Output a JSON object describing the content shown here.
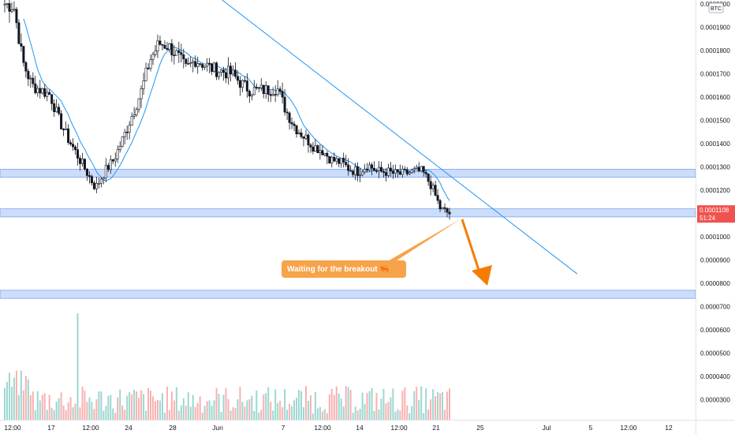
{
  "chart_data": {
    "type": "candlestick",
    "currency_badge": "BTC",
    "y_ticks": [
      "0.0002000",
      "0.0001900",
      "0.0001800",
      "0.0001700",
      "0.0001600",
      "0.0001500",
      "0.0001400",
      "0.0001300",
      "0.0001200",
      "0.0001000",
      "0.0000900",
      "0.0000800",
      "0.0000700",
      "0.0000600",
      "0.0000500",
      "0.0000400",
      "0.0000300"
    ],
    "y_tick_values": [
      0.0002,
      0.00019,
      0.00018,
      0.00017,
      0.00016,
      0.00015,
      0.00014,
      0.00013,
      0.00012,
      0.0001,
      9e-05,
      8e-05,
      7e-05,
      6e-05,
      5e-05,
      4e-05,
      3e-05
    ],
    "x_ticks": [
      "12:00",
      "17",
      "12:00",
      "24",
      "28",
      "Jun",
      "7",
      "12:00",
      "14",
      "12:00",
      "21",
      "25",
      "Jul",
      "5",
      "12:00",
      "12"
    ],
    "current_price": {
      "value": "0.0001108",
      "countdown": "51:24",
      "color": "#ef5350"
    },
    "annotation": {
      "text": "Waiting for the breakout 🦐",
      "color": "#f7a34a",
      "arrow_color": "#f57c00"
    },
    "support_zones": [
      [
        0.0001255,
        0.000129
      ],
      [
        0.0001085,
        0.000112
      ],
      [
        7.35e-05,
        7.7e-05
      ]
    ],
    "trendline": [
      [
        0.00021,
        8.4e-05
      ]
    ],
    "colors": {
      "up": "#26a69a",
      "down": "#ef5350",
      "candle": "#131722",
      "ma": "#2196f3",
      "zone": "#bbd1f8",
      "zone_border": "#5b8def"
    },
    "price_path": [
      0.0002,
      0.000199,
      0.000175,
      0.000165,
      0.000163,
      0.000161,
      0.00015,
      0.000142,
      0.000135,
      0.000128,
      0.000121,
      0.000128,
      0.000133,
      0.000142,
      0.000152,
      0.000162,
      0.000176,
      0.000183,
      0.000182,
      0.000178,
      0.000172,
      0.000176,
      0.000174,
      0.000172,
      0.000171,
      0.00017,
      0.000166,
      0.000163,
      0.000163,
      0.000163,
      0.000164,
      0.000154,
      0.000147,
      0.000143,
      0.000139,
      0.000137,
      0.000133,
      0.000132,
      0.000129,
      0.000128,
      0.000131,
      0.000128,
      0.000128,
      0.000127,
      0.000127,
      0.000128,
      0.000128,
      0.000122,
      0.000112,
      0.00011
    ]
  }
}
